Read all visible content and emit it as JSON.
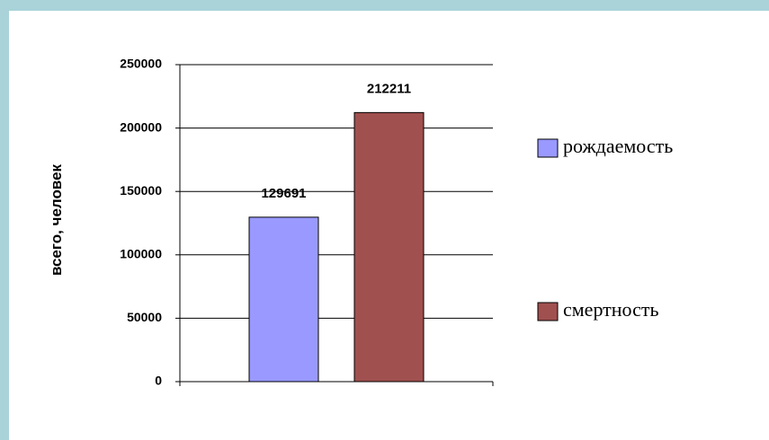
{
  "chart_data": {
    "type": "bar",
    "ylabel": "всего, человек",
    "categories": [
      null
    ],
    "series": [
      {
        "name": "рождаемость",
        "color": "#9999ff",
        "values": [
          129691
        ]
      },
      {
        "name": "смертность",
        "color": "#a0504f",
        "values": [
          212211
        ]
      }
    ],
    "ylim": [
      0,
      250000
    ],
    "yticks": [
      0,
      50000,
      100000,
      150000,
      200000,
      250000
    ],
    "grid": true,
    "legend": "right"
  }
}
